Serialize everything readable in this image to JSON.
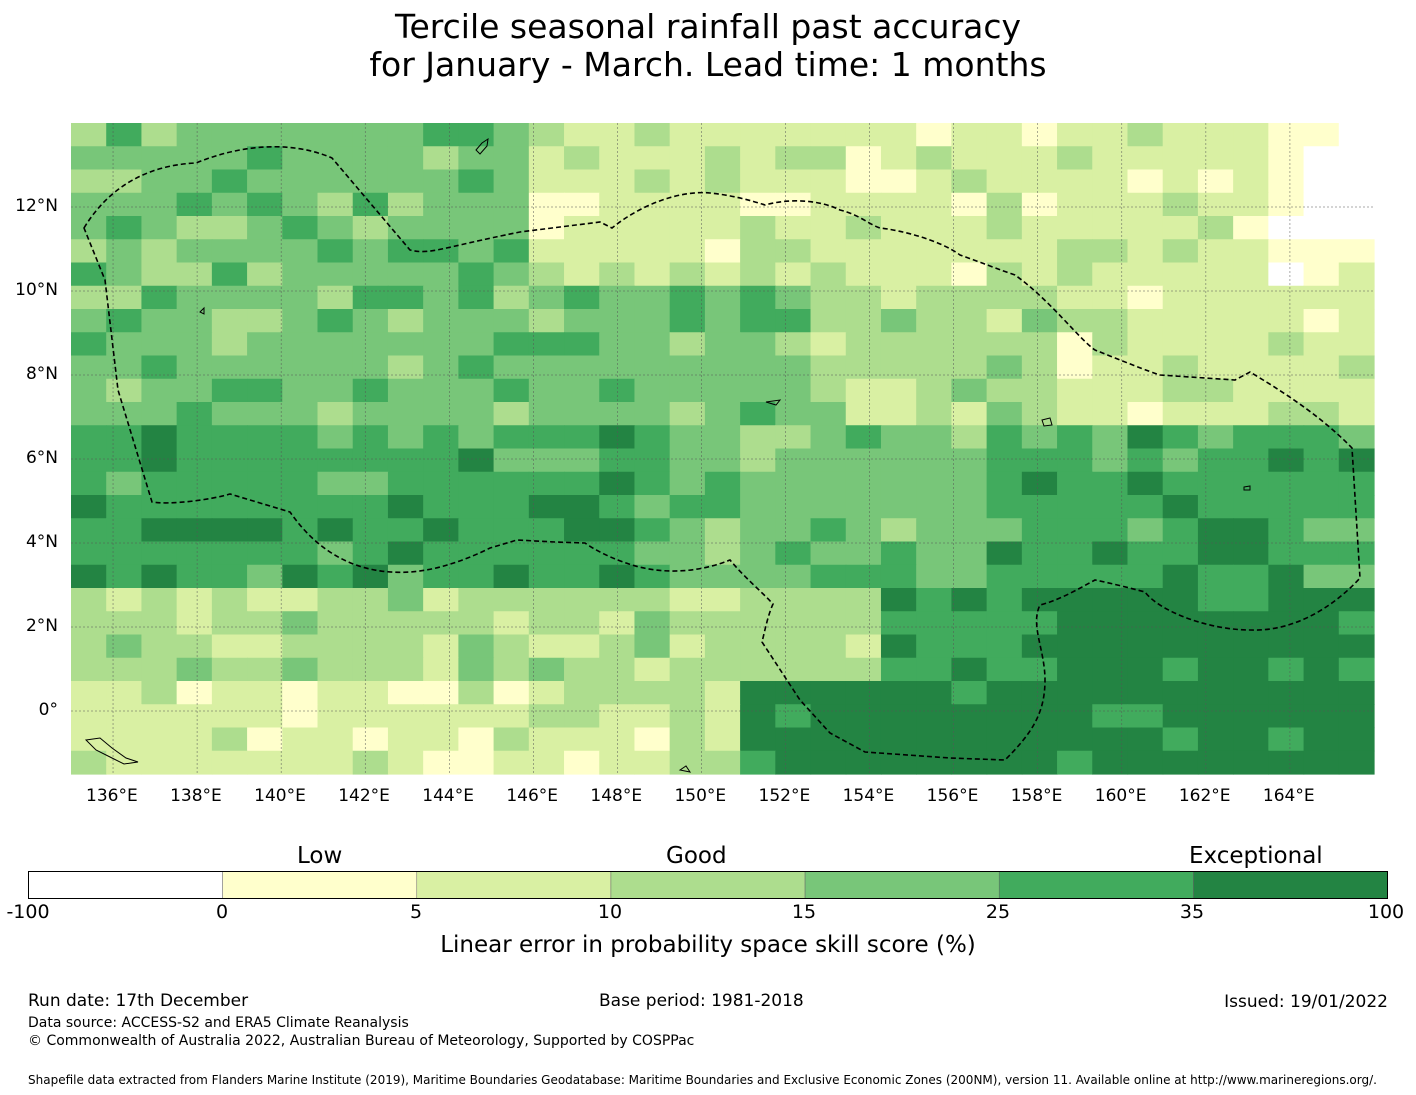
{
  "title": {
    "line1": "Tercile seasonal rainfall past accuracy",
    "line2": "for January - March. Lead time: 1 months"
  },
  "map": {
    "lon_ticks": [
      "136°E",
      "138°E",
      "140°E",
      "142°E",
      "144°E",
      "146°E",
      "148°E",
      "150°E",
      "152°E",
      "154°E",
      "156°E",
      "158°E",
      "160°E",
      "162°E",
      "164°E"
    ],
    "lat_ticks": [
      "12°N",
      "10°N",
      "8°N",
      "6°N",
      "4°N",
      "2°N",
      "0°"
    ],
    "lon_range": [
      135,
      166
    ],
    "lat_range": [
      -1.5,
      14
    ],
    "boundary": "dashed EEZ boundary"
  },
  "colorbar": {
    "categories": {
      "low": "Low",
      "good": "Good",
      "exceptional": "Exceptional"
    },
    "ticks": [
      "-100",
      "0",
      "5",
      "10",
      "15",
      "25",
      "35",
      "100"
    ],
    "colors": [
      "#ffffff",
      "#ffffcc",
      "#d9f0a3",
      "#addd8e",
      "#78c679",
      "#41ab5d",
      "#238443"
    ],
    "label": "Linear error in probability space skill score (%)"
  },
  "footer": {
    "run_date": "Run date: 17th December",
    "base_period": "Base period: 1981-2018",
    "issued": "Issued: 19/01/2022",
    "data_source": "Data source: ACCESS-S2 and ERA5 Climate Reanalysis",
    "copyright": "© Commonwealth of Australia 2022, Australian Bureau of Meteorology, Supported by COSPPac",
    "shapefile": "Shapefile data extracted from Flanders Marine Institute (2019), Maritime Boundaries Geodatabase: Maritime Boundaries and Exclusive Economic Zones (200NM), version 11. Available online at http://www.marineregions.org/."
  }
}
